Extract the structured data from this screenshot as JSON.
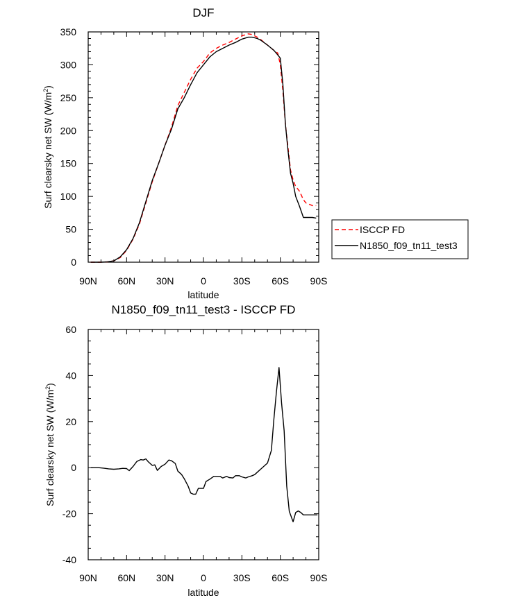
{
  "chart_data": [
    {
      "type": "line",
      "title": "DJF",
      "xlabel": "latitude",
      "ylabel": "Surf clearsky net SW (W/m²)",
      "ylabel_main": "Surf clearsky net SW (W/m",
      "ylabel_sup": "2",
      "ylabel_close": ")",
      "xlim": [
        90,
        -90
      ],
      "ylim": [
        0,
        350
      ],
      "xticks": [
        90,
        60,
        30,
        0,
        -30,
        -60,
        -90
      ],
      "xtick_labels": [
        "90N",
        "60N",
        "30N",
        "0",
        "30S",
        "60S",
        "90S"
      ],
      "yticks": [
        0,
        50,
        100,
        150,
        200,
        250,
        300,
        350
      ],
      "ytick_labels": [
        "0",
        "50",
        "100",
        "150",
        "200",
        "250",
        "300",
        "350"
      ],
      "legend": {
        "position": "right",
        "entries": [
          "ISCCP FD",
          "N1850_f09_tn11_test3"
        ]
      },
      "series": [
        {
          "name": "ISCCP FD",
          "style": "dashed",
          "color": "#ff0000",
          "x": [
            88,
            80,
            75,
            70,
            65,
            60,
            55,
            50,
            45,
            40,
            35,
            30,
            25,
            20,
            15,
            10,
            5,
            0,
            -5,
            -10,
            -15,
            -20,
            -25,
            -30,
            -35,
            -38,
            -42,
            -45,
            -50,
            -55,
            -58,
            -60,
            -62,
            -64,
            -66,
            -68,
            -70,
            -72,
            -75,
            -78,
            -80,
            -85,
            -88
          ],
          "y": [
            0,
            0,
            0.5,
            2,
            7,
            18,
            35,
            58,
            90,
            122,
            150,
            178,
            205,
            238,
            258,
            278,
            295,
            305,
            318,
            325,
            330,
            334,
            339,
            344,
            347,
            346,
            342,
            338,
            330,
            322,
            318,
            300,
            260,
            210,
            175,
            140,
            125,
            115,
            108,
            95,
            90,
            86,
            86
          ]
        },
        {
          "name": "N1850_f09_tn11_test3",
          "style": "solid",
          "color": "#000000",
          "x": [
            88,
            80,
            75,
            70,
            65,
            60,
            55,
            50,
            45,
            40,
            35,
            30,
            25,
            20,
            15,
            10,
            5,
            0,
            -5,
            -10,
            -15,
            -20,
            -25,
            -30,
            -35,
            -38,
            -42,
            -45,
            -50,
            -55,
            -58,
            -60,
            -62,
            -64,
            -66,
            -68,
            -70,
            -72,
            -75,
            -78,
            -80,
            -85,
            -88
          ],
          "y": [
            0,
            0,
            0.5,
            2,
            8,
            19,
            36,
            60,
            92,
            124,
            150,
            178,
            202,
            233,
            250,
            270,
            288,
            300,
            312,
            320,
            325,
            330,
            334,
            339,
            342,
            342,
            340,
            337,
            330,
            322,
            315,
            310,
            270,
            210,
            170,
            135,
            120,
            100,
            85,
            68,
            68,
            68,
            67
          ]
        }
      ]
    },
    {
      "type": "line",
      "title": "N1850_f09_tn11_test3 - ISCCP FD",
      "xlabel": "latitude",
      "ylabel": "Surf clearsky net SW (W/m²)",
      "ylabel_main": "Surf clearsky net SW (W/m",
      "ylabel_sup": "2",
      "ylabel_close": ")",
      "xlim": [
        90,
        -90
      ],
      "ylim": [
        -40,
        60
      ],
      "xticks": [
        90,
        60,
        30,
        0,
        -30,
        -60,
        -90
      ],
      "xtick_labels": [
        "90N",
        "60N",
        "30N",
        "0",
        "30S",
        "60S",
        "90S"
      ],
      "yticks": [
        -40,
        -20,
        0,
        20,
        40,
        60
      ],
      "ytick_labels": [
        "-40",
        "-20",
        "0",
        "20",
        "40",
        "60"
      ],
      "series": [
        {
          "name": "N1850_f09_tn11_test3 - ISCCP FD",
          "style": "solid",
          "color": "#000000",
          "x": [
            88,
            82,
            78,
            74,
            70,
            66,
            63,
            60,
            58,
            55,
            52,
            49,
            47,
            45,
            43,
            40,
            38,
            36,
            33,
            30,
            27,
            25,
            22,
            20,
            17,
            15,
            12,
            10,
            8,
            6,
            4,
            2,
            0,
            -2,
            -5,
            -8,
            -10,
            -13,
            -15,
            -18,
            -20,
            -23,
            -25,
            -28,
            -30,
            -33,
            -35,
            -38,
            -40,
            -43,
            -45,
            -48,
            -50,
            -53,
            -55,
            -57,
            -59,
            -61,
            -63,
            -65,
            -67,
            -70,
            -72,
            -74,
            -76,
            -78,
            -80,
            -83,
            -85,
            -87,
            -89
          ],
          "y": [
            0,
            0,
            -0.2,
            -0.5,
            -0.7,
            -0.5,
            -0.3,
            -0.4,
            -1.3,
            0.5,
            2.7,
            3.5,
            3.3,
            3.8,
            2.5,
            1,
            1.2,
            -1.2,
            0.5,
            1.5,
            3.3,
            3,
            1.8,
            -1.5,
            -3,
            -4.8,
            -8,
            -11,
            -11.5,
            -11.5,
            -9,
            -9,
            -9,
            -6,
            -5,
            -3.8,
            -3.8,
            -3.8,
            -4.5,
            -3.8,
            -4.3,
            -4.5,
            -3.5,
            -3.5,
            -4,
            -4.5,
            -4,
            -3.5,
            -3,
            -1.5,
            -0.5,
            1,
            2,
            7.5,
            21,
            33,
            43.5,
            28,
            16,
            -8,
            -19,
            -23.5,
            -19.5,
            -18.8,
            -19.5,
            -20.5,
            -20.5,
            -20.5,
            -20.5,
            -20.5,
            -20.5
          ]
        }
      ]
    }
  ]
}
